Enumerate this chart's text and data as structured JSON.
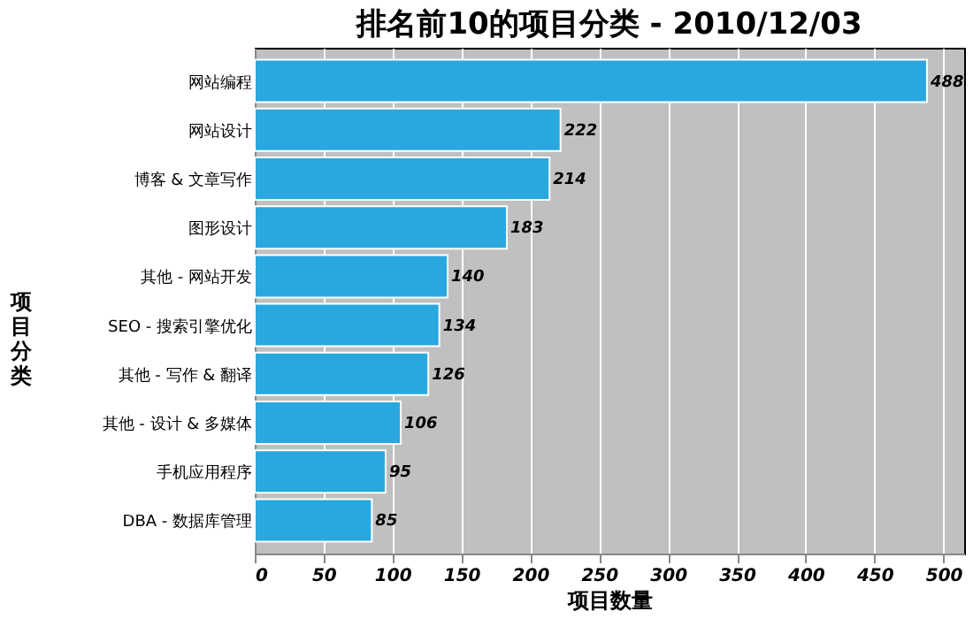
{
  "chart_data": {
    "type": "bar",
    "orientation": "horizontal",
    "title": "排名前10的项目分类 - 2010/12/03",
    "xlabel": "项目数量",
    "ylabel": "项目分类",
    "categories": [
      "网站编程",
      "网站设计",
      "博客 & 文章写作",
      "图形设计",
      "其他 - 网站开发",
      "SEO - 搜索引擎优化",
      "其他 - 写作 & 翻译",
      "其他 - 设计 & 多媒体",
      "手机应用程序",
      "DBA - 数据库管理"
    ],
    "values": [
      488,
      222,
      214,
      183,
      140,
      134,
      126,
      106,
      95,
      85
    ],
    "color": "#29a8e0",
    "xlim": [
      0,
      515
    ],
    "xticks": [
      0,
      50,
      100,
      150,
      200,
      250,
      300,
      350,
      400,
      450,
      500
    ],
    "grid": "x",
    "data_labels": true
  }
}
